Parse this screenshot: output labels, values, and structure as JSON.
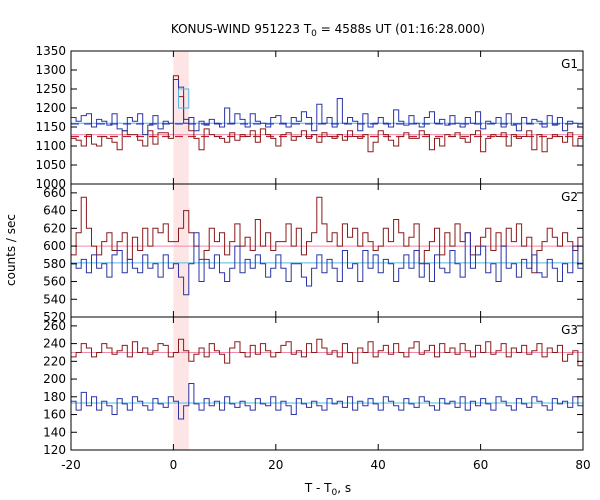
{
  "chart_data": {
    "type": "line",
    "title": "KONUS-WIND 951223 T",
    "title_sub": "0",
    "title_tail": " = 4588s UT (01:16:28.000)",
    "xlabel": "T - T",
    "xlabel_sub": "0",
    "xlabel_tail": ", s",
    "ylabel": "counts / sec",
    "xlim": [
      -20,
      80
    ],
    "x_ticks": [
      -20,
      0,
      20,
      40,
      60,
      80
    ],
    "bin_width": 1,
    "highlight": {
      "x0": 0,
      "x1": 3,
      "color": "#fde5e5"
    },
    "colors": {
      "red": "#8b1a1a",
      "blue": "#2a34a8",
      "red_level": "#f08aaa",
      "blue_level": "#4fb8e6",
      "red_dashed": "#c42030",
      "blue_dashed": "#2030c8"
    },
    "panels": [
      {
        "name": "G1",
        "ylim": [
          1000,
          1350
        ],
        "y_ticks": [
          1000,
          1050,
          1100,
          1150,
          1200,
          1250,
          1300,
          1350
        ],
        "levels": {
          "red": 1130,
          "blue": 1160
        },
        "dashed": {
          "red": 1125,
          "blue": 1158
        },
        "inset": {
          "x0": 0,
          "x1": 3,
          "levels": [
            1200,
            1250
          ]
        },
        "series": [
          {
            "color": "red",
            "values": [
              1120,
              1115,
              1100,
              1130,
              1105,
              1100,
              1125,
              1120,
              1110,
              1090,
              1140,
              1130,
              1130,
              1115,
              1100,
              1140,
              1105,
              1135,
              1135,
              1120,
              1285,
              1230,
              1170,
              1140,
              1120,
              1090,
              1145,
              1130,
              1125,
              1120,
              1110,
              1135,
              1115,
              1130,
              1125,
              1140,
              1110,
              1145,
              1130,
              1120,
              1100,
              1130,
              1135,
              1115,
              1125,
              1140,
              1120,
              1130,
              1110,
              1135,
              1125,
              1120,
              1130,
              1115,
              1140,
              1125,
              1120,
              1130,
              1085,
              1110,
              1140,
              1130,
              1115,
              1100,
              1125,
              1135,
              1120,
              1120,
              1140,
              1130,
              1090,
              1120,
              1100,
              1130,
              1125,
              1135,
              1120,
              1110,
              1130,
              1140,
              1085,
              1120,
              1130,
              1125,
              1135,
              1100,
              1130,
              1120,
              1125,
              1140,
              1090,
              1130,
              1085,
              1120,
              1130,
              1125,
              1110,
              1135,
              1100,
              1120
            ]
          },
          {
            "color": "blue",
            "values": [
              1175,
              1165,
              1180,
              1185,
              1150,
              1170,
              1165,
              1155,
              1185,
              1145,
              1140,
              1175,
              1165,
              1185,
              1130,
              1155,
              1180,
              1145,
              1165,
              1160,
              1275,
              1255,
              1160,
              1175,
              1140,
              1165,
              1155,
              1170,
              1160,
              1150,
              1200,
              1160,
              1185,
              1170,
              1150,
              1185,
              1165,
              1160,
              1150,
              1175,
              1180,
              1160,
              1150,
              1175,
              1165,
              1190,
              1175,
              1140,
              1210,
              1160,
              1175,
              1150,
              1225,
              1160,
              1175,
              1165,
              1140,
              1185,
              1150,
              1160,
              1175,
              1160,
              1150,
              1195,
              1165,
              1155,
              1180,
              1160,
              1150,
              1175,
              1190,
              1160,
              1170,
              1155,
              1180,
              1160,
              1150,
              1175,
              1160,
              1190,
              1145,
              1165,
              1160,
              1175,
              1150,
              1185,
              1155,
              1140,
              1175,
              1160,
              1170,
              1165,
              1150,
              1180,
              1155,
              1175,
              1140,
              1165,
              1160,
              1150
            ]
          }
        ]
      },
      {
        "name": "G2",
        "ylim": [
          520,
          670
        ],
        "y_ticks": [
          520,
          540,
          560,
          580,
          600,
          620,
          640,
          660
        ],
        "levels": {
          "red": 600,
          "blue": 581
        },
        "series": [
          {
            "color": "red",
            "values": [
              590,
              615,
              655,
              620,
              600,
              590,
              605,
              615,
              595,
              605,
              615,
              585,
              610,
              595,
              620,
              600,
              620,
              615,
              625,
              605,
              605,
              620,
              640,
              615,
              600,
              585,
              595,
              620,
              605,
              615,
              590,
              605,
              625,
              600,
              610,
              595,
              630,
              600,
              615,
              595,
              605,
              605,
              625,
              600,
              620,
              590,
              605,
              615,
              655,
              625,
              605,
              615,
              600,
              625,
              610,
              620,
              600,
              615,
              605,
              595,
              600,
              620,
              605,
              630,
              615,
              600,
              610,
              625,
              580,
              595,
              605,
              620,
              590,
              615,
              600,
              625,
              605,
              615,
              590,
              600,
              610,
              620,
              595,
              615,
              600,
              620,
              605,
              625,
              600,
              610,
              570,
              595,
              605,
              620,
              610,
              600,
              615,
              605,
              595,
              610
            ]
          },
          {
            "color": "blue",
            "values": [
              580,
              575,
              585,
              570,
              590,
              575,
              580,
              565,
              590,
              595,
              570,
              585,
              575,
              570,
              590,
              575,
              580,
              565,
              590,
              575,
              580,
              565,
              545,
              580,
              615,
              560,
              585,
              575,
              590,
              570,
              560,
              575,
              600,
              570,
              585,
              575,
              590,
              580,
              565,
              575,
              590,
              575,
              560,
              580,
              580,
              565,
              555,
              575,
              590,
              570,
              585,
              575,
              560,
              595,
              575,
              580,
              560,
              595,
              575,
              590,
              570,
              585,
              580,
              560,
              575,
              590,
              575,
              595,
              565,
              580,
              560,
              590,
              575,
              570,
              595,
              580,
              565,
              615,
              575,
              590,
              600,
              570,
              580,
              560,
              600,
              575,
              580,
              565,
              585,
              575,
              590,
              570,
              565,
              585,
              575,
              560,
              580,
              570,
              600,
              575
            ]
          }
        ]
      },
      {
        "name": "G3",
        "ylim": [
          120,
          270
        ],
        "y_ticks": [
          120,
          140,
          160,
          180,
          200,
          220,
          240,
          260
        ],
        "levels": {
          "red": 230,
          "blue": 173
        },
        "series": [
          {
            "color": "red",
            "values": [
              225,
              230,
              240,
              235,
              225,
              230,
              240,
              235,
              228,
              232,
              238,
              225,
              242,
              230,
              235,
              228,
              232,
              240,
              238,
              225,
              230,
              245,
              232,
              220,
              228,
              235,
              225,
              240,
              232,
              228,
              218,
              235,
              242,
              230,
              225,
              238,
              228,
              240,
              232,
              225,
              230,
              238,
              242,
              228,
              232,
              225,
              240,
              230,
              245,
              235,
              228,
              232,
              225,
              240,
              230,
              218,
              235,
              230,
              242,
              225,
              232,
              238,
              228,
              240,
              230,
              225,
              235,
              242,
              228,
              232,
              238,
              225,
              240,
              230,
              235,
              228,
              240,
              232,
              225,
              238,
              230,
              242,
              228,
              232,
              240,
              225,
              235,
              230,
              238,
              228,
              232,
              240,
              225,
              235,
              230,
              238,
              220,
              228,
              232,
              215
            ]
          },
          {
            "color": "blue",
            "values": [
              175,
              165,
              185,
              170,
              180,
              165,
              175,
              170,
              160,
              178,
              172,
              165,
              180,
              175,
              170,
              165,
              178,
              172,
              168,
              180,
              175,
              155,
              170,
              195,
              172,
              165,
              178,
              170,
              175,
              165,
              180,
              172,
              168,
              175,
              170,
              165,
              178,
              172,
              170,
              180,
              165,
              175,
              170,
              160,
              178,
              172,
              168,
              175,
              170,
              165,
              178,
              172,
              175,
              168,
              180,
              165,
              175,
              170,
              178,
              172,
              165,
              180,
              175,
              170,
              165,
              178,
              172,
              168,
              180,
              175,
              170,
              165,
              178,
              172,
              175,
              168,
              180,
              165,
              175,
              170,
              178,
              172,
              165,
              180,
              175,
              170,
              165,
              178,
              172,
              168,
              180,
              175,
              170,
              165,
              178,
              172,
              175,
              168,
              180,
              170
            ]
          }
        ]
      }
    ]
  }
}
